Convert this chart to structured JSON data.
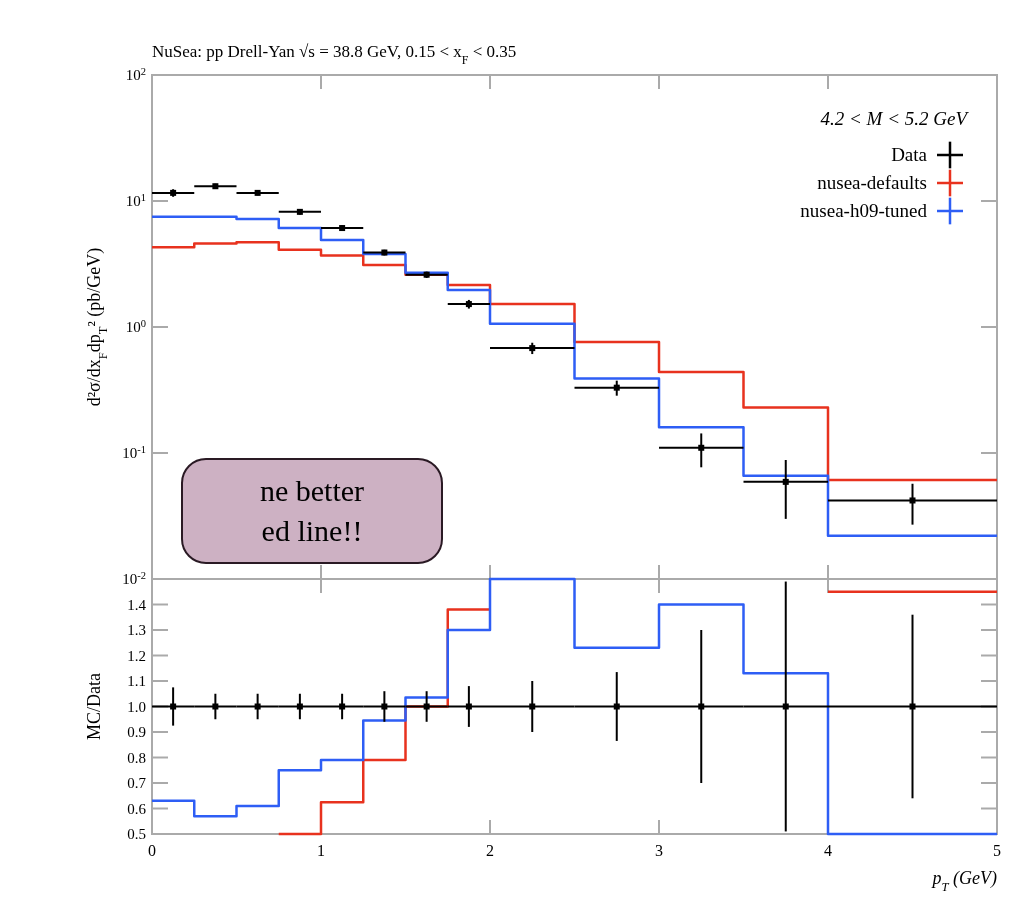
{
  "chart_data": [
    {
      "type": "step",
      "title": "NuSea: pp Drell-Yan √s = 38.8 GeV, 0.15 < x$_{F}$ < 0.35",
      "ylabel": "d²σ/dx$_{F}$dp$_{T}$² (pb/GeV)",
      "legend_title": "4.2 < M < 5.2 GeV",
      "legend": "top right",
      "log": "y",
      "grid": false,
      "tick_labels": "y",
      "xlim": [
        0,
        5
      ],
      "xticks": [
        0,
        1,
        2,
        3,
        4,
        5
      ],
      "ylim": [
        0.01,
        100
      ],
      "yticks": [
        {
          "value": 0.01,
          "label": "10$^{-2}$"
        },
        {
          "value": 0.1,
          "label": "10$^{-1}$"
        },
        {
          "value": 1,
          "label": "10$^{0}$"
        },
        {
          "value": 10,
          "label": "10$^{1}$"
        },
        {
          "value": 100,
          "label": "10$^{2}$"
        }
      ],
      "annotations": [
        "ne better\ned line!!"
      ],
      "series": [
        {
          "name": "Data",
          "type": "scatter",
          "marker": "square",
          "color": "#000000",
          "x": [
            0.125,
            0.375,
            0.625,
            0.875,
            1.125,
            1.375,
            1.625,
            1.875,
            2.25,
            2.75,
            3.25,
            3.75,
            4.5
          ],
          "values": [
            11.6,
            13.1,
            11.6,
            8.2,
            6.1,
            3.9,
            2.6,
            1.52,
            0.68,
            0.33,
            0.11,
            0.059,
            0.042
          ],
          "xerrors": [
            0.125,
            0.125,
            0.125,
            0.125,
            0.125,
            0.125,
            0.125,
            0.125,
            0.25,
            0.25,
            0.25,
            0.25,
            0.5
          ],
          "errors": [
            0.8,
            0.6,
            0.5,
            0.4,
            0.3,
            0.2,
            0.15,
            0.12,
            0.07,
            0.045,
            0.033,
            0.029,
            0.015
          ]
        },
        {
          "name": "nusea-defaults",
          "color": "#e8321e",
          "x": [
            0,
            0.25,
            0.5,
            0.75,
            1,
            1.25,
            1.5,
            1.75,
            2,
            2.5,
            3,
            3.5,
            4,
            5
          ],
          "values": [
            4.3,
            4.6,
            4.7,
            4.1,
            3.7,
            3.1,
            2.6,
            2.15,
            1.52,
            0.76,
            0.44,
            0.23,
            0.061,
            0.061
          ]
        },
        {
          "name": "nusea-h09-tuned",
          "color": "#2e5ef5",
          "x": [
            0,
            0.25,
            0.5,
            0.75,
            1,
            1.25,
            1.5,
            1.75,
            2,
            2.5,
            3,
            3.5,
            4,
            5
          ],
          "values": [
            7.5,
            7.5,
            7.2,
            6.1,
            4.9,
            3.8,
            2.7,
            1.97,
            1.06,
            0.39,
            0.16,
            0.066,
            0.022,
            0.022
          ]
        }
      ]
    },
    {
      "type": "step",
      "xlabel": "p$_{T}$ (GeV)",
      "ylabel": "MC/Data",
      "grid": false,
      "xlim": [
        0,
        5
      ],
      "xticks": [
        0,
        1,
        2,
        3,
        4,
        5
      ],
      "ylim": [
        0.5,
        1.5
      ],
      "yticks": [
        0.5,
        0.6,
        0.7,
        0.8,
        0.9,
        {
          "value": 1,
          "label": "1.0"
        },
        1.1,
        1.2,
        1.3,
        1.4
      ],
      "series": [
        {
          "type": "scatter",
          "marker": "square",
          "color": "#000000",
          "x": [
            0.125,
            0.375,
            0.625,
            0.875,
            1.125,
            1.375,
            1.625,
            1.875,
            2.25,
            2.75,
            3.25,
            3.75,
            4.5
          ],
          "values": [
            1,
            1,
            1,
            1,
            1,
            1,
            1,
            1,
            1,
            1,
            1,
            1,
            1
          ],
          "xerrors": [
            0.125,
            0.125,
            0.125,
            0.125,
            0.125,
            0.125,
            0.125,
            0.125,
            0.25,
            0.25,
            0.25,
            0.25,
            0.5
          ],
          "errors": [
            0.075,
            0.05,
            0.05,
            0.05,
            0.05,
            0.06,
            0.06,
            0.08,
            0.1,
            0.135,
            0.3,
            0.49,
            0.36
          ]
        },
        {
          "color": "#e8321e",
          "x": [
            0.75,
            1,
            1.25,
            1.5,
            1.75,
            2
          ],
          "values": [
            0.5,
            0.625,
            0.79,
            1.0,
            1.38,
            1.38
          ]
        },
        {
          "color": "#e8321e",
          "x": [
            4,
            5
          ],
          "values": [
            1.45,
            1.45
          ]
        },
        {
          "color": "#2e5ef5",
          "x": [
            0,
            0.25,
            0.5,
            0.75,
            1,
            1.25,
            1.5,
            1.75,
            2,
            2.5,
            3,
            3.5,
            4,
            5
          ],
          "values": [
            0.63,
            0.57,
            0.61,
            0.75,
            0.79,
            0.945,
            1.035,
            1.3,
            1.5,
            1.23,
            1.4,
            1.13,
            0.5,
            0.5
          ]
        }
      ]
    }
  ]
}
